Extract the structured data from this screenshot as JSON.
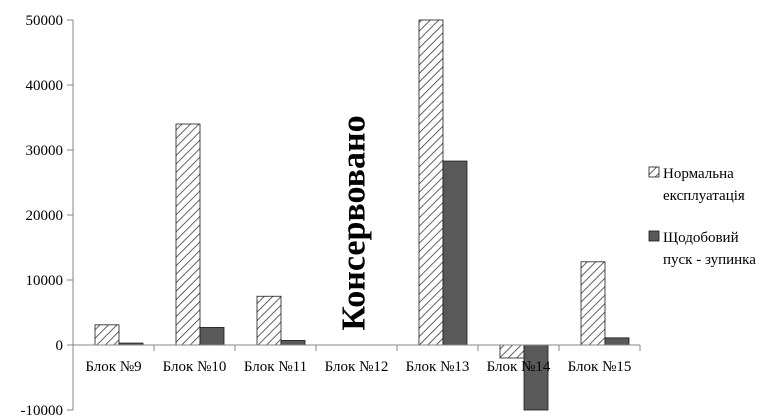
{
  "chart_data": {
    "type": "bar",
    "categories": [
      "Блок №9",
      "Блок №10",
      "Блок №11",
      "Блок №12",
      "Блок №13",
      "Блок №14",
      "Блок №15"
    ],
    "series": [
      {
        "name": "Нормальна експлуатація",
        "values": [
          3100,
          34000,
          7500,
          null,
          50000,
          -2000,
          12800
        ],
        "color": "#ffffff",
        "pattern": "diagonal-hatch"
      },
      {
        "name": "Щодобовий пуск - зупинка",
        "values": [
          300,
          2700,
          700,
          null,
          28300,
          -10000,
          1100
        ],
        "color": "#595959",
        "pattern": "solid"
      }
    ],
    "ylim": [
      -10000,
      50000
    ],
    "yticks": [
      -10000,
      0,
      10000,
      20000,
      30000,
      40000,
      50000
    ],
    "ytick_labels": [
      "-10000",
      "0",
      "10000",
      "20000",
      "30000",
      "40000",
      "50000"
    ],
    "grid": false,
    "legend": {
      "position": "right",
      "entries": [
        [
          "Нормальна",
          "експлуатація"
        ],
        [
          "Щодобовий",
          "пуск - зупинка"
        ]
      ]
    },
    "annotations": [
      {
        "text": "Консервовано",
        "category": "Блок №12",
        "orientation": "vertical"
      }
    ],
    "title": "",
    "xlabel": "",
    "ylabel": ""
  }
}
